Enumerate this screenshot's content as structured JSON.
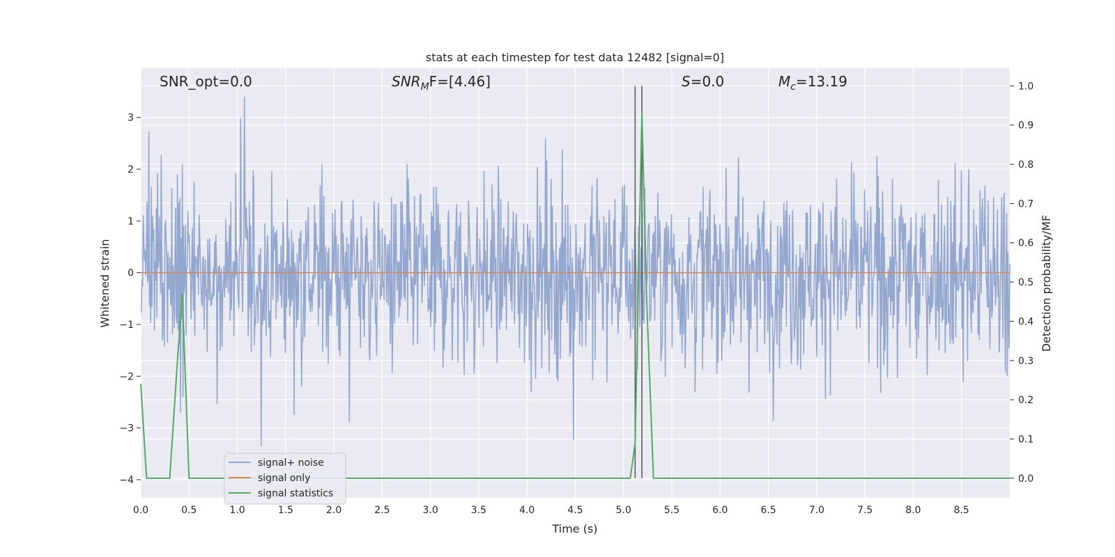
{
  "chart_data": {
    "type": "line",
    "title": "stats at each timestep for test data 12482 [signal=0]",
    "xlabel": "Time (s)",
    "ylabel_left": "Whitened strain",
    "ylabel_right": "Detection probability/MF",
    "xlim": [
      0,
      9.0
    ],
    "ylim_left": [
      -4.35,
      3.95
    ],
    "ylim_right": [
      -0.05,
      1.045
    ],
    "x_ticks": [
      "0.0",
      "0.5",
      "1.0",
      "1.5",
      "2.0",
      "2.5",
      "3.0",
      "3.5",
      "4.0",
      "4.5",
      "5.0",
      "5.5",
      "6.0",
      "6.5",
      "7.0",
      "7.5",
      "8.0",
      "8.5"
    ],
    "y_ticks_left": [
      "3",
      "2",
      "1",
      "0",
      "−1",
      "−2",
      "−3",
      "−4"
    ],
    "y_ticks_right": [
      "1.0",
      "0.9",
      "0.8",
      "0.7",
      "0.6",
      "0.5",
      "0.4",
      "0.3",
      "0.2",
      "0.1",
      "0.0"
    ],
    "grid": true,
    "legend_position": "lower-left",
    "annotations": [
      {
        "id": "snr-opt",
        "text": "SNR_opt=0.0"
      },
      {
        "id": "snr-mf-label",
        "text": "SNR",
        "sub": "M",
        "rest": "F=[4.46]"
      },
      {
        "id": "s-label",
        "text": "S",
        "rest": "=0.0"
      },
      {
        "id": "mc-label",
        "text": "M",
        "sub": "c",
        "rest": "=13.19"
      }
    ],
    "vertical_lines": [
      5.12,
      5.19
    ],
    "series": [
      {
        "name": "signal+ noise",
        "color": "#8fa4cc",
        "axis": "left",
        "description_values": "whitened strain noise, roughly within ±2 with peaks to about ±3.4"
      },
      {
        "name": "signal only",
        "color": "#dd8452",
        "axis": "left",
        "constant": 0
      },
      {
        "name": "signal statistics",
        "color": "#55a868",
        "axis": "right",
        "x": [
          0.0,
          0.06,
          0.1,
          0.3,
          0.38,
          0.43,
          0.5,
          1.0,
          2.0,
          2.2,
          3.0,
          4.0,
          5.0,
          5.07,
          5.12,
          5.19,
          5.24,
          5.31,
          6.0,
          7.0,
          8.0,
          9.0
        ],
        "values": [
          0.24,
          0.0,
          0.0,
          0.0,
          0.3,
          0.47,
          0.0,
          0.0,
          0.0,
          0.0,
          0.0,
          0.0,
          0.0,
          0.0,
          0.09,
          0.93,
          0.45,
          0.0,
          0.0,
          0.0,
          0.0,
          0.0
        ]
      }
    ]
  }
}
